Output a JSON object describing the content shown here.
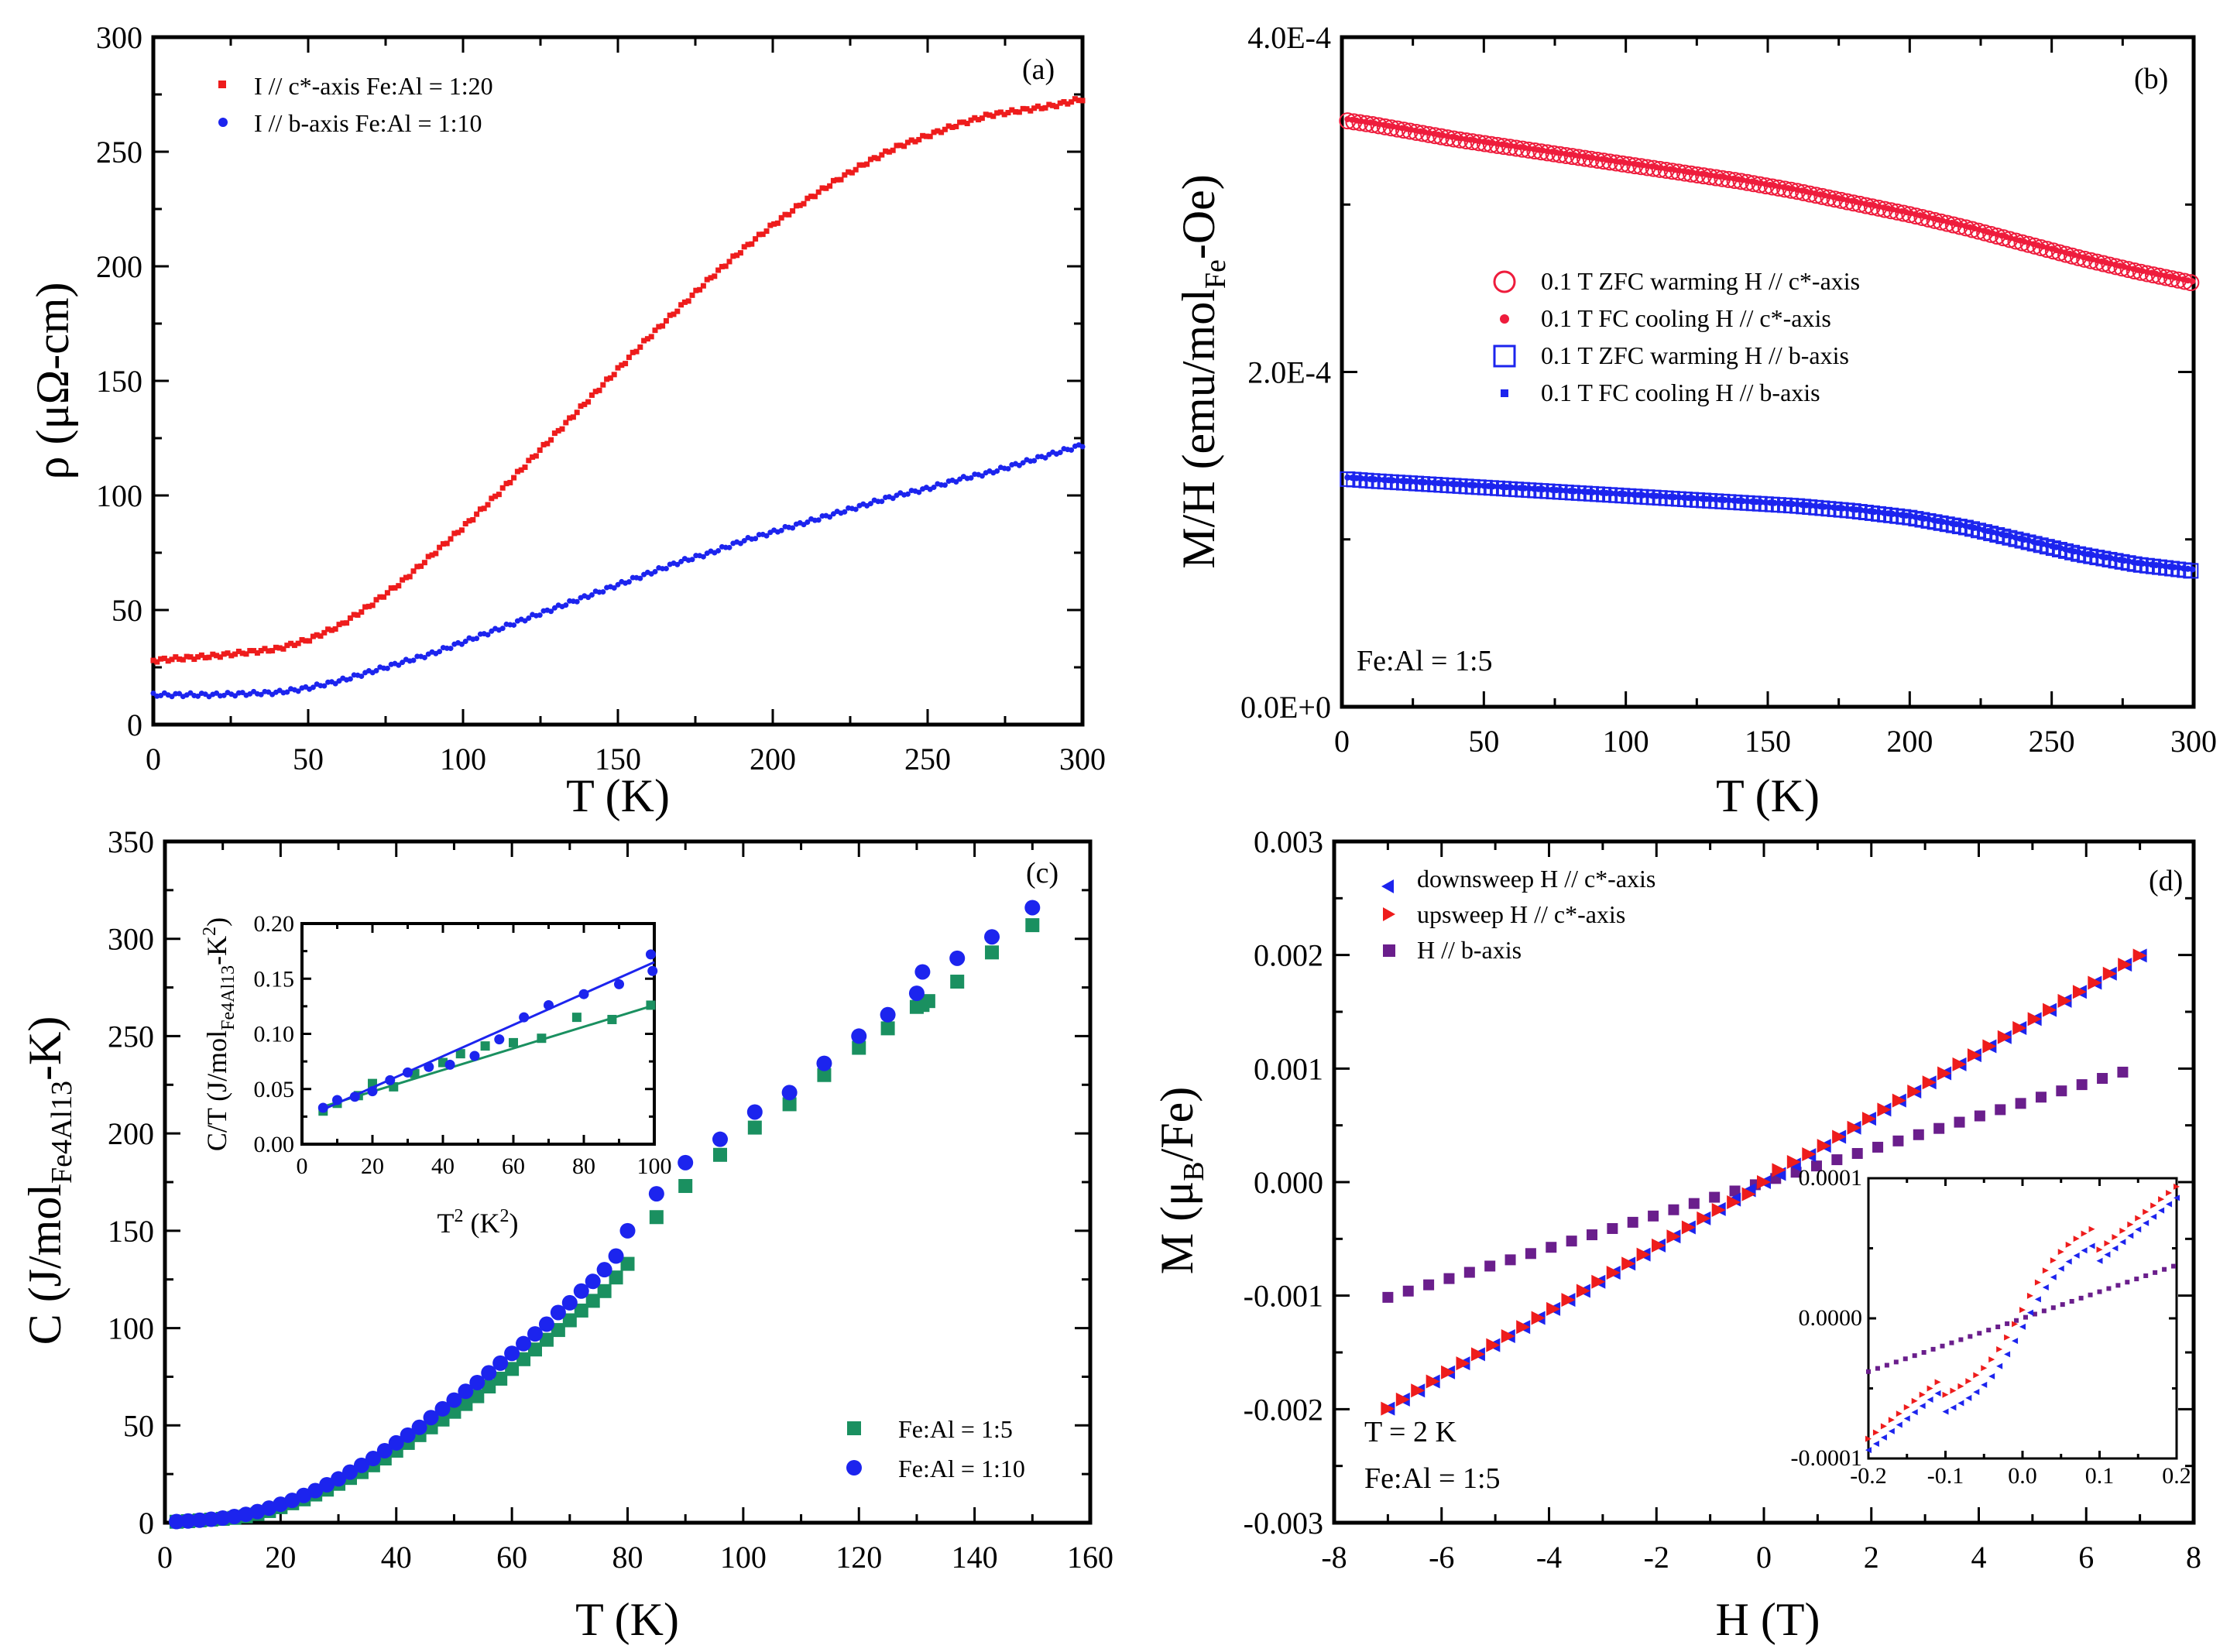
{
  "chart_data": [
    {
      "type": "line",
      "panel": "(a)",
      "xlabel": "T (K)",
      "ylabel": "ρ (μΩ-cm)",
      "xlim": [
        0,
        300
      ],
      "ylim": [
        0,
        300
      ],
      "xticks": [
        "0",
        "50",
        "100",
        "150",
        "200",
        "250",
        "300"
      ],
      "yticks": [
        "0",
        "50",
        "100",
        "150",
        "200",
        "250",
        "300"
      ],
      "legend_position": "top-left",
      "series": [
        {
          "name": "I // c*-axis Fe:Al = 1:20",
          "color": "#ee1c1c",
          "x": [
            0,
            20,
            40,
            50,
            60,
            70,
            80,
            90,
            100,
            110,
            120,
            130,
            140,
            150,
            160,
            170,
            180,
            190,
            200,
            210,
            220,
            230,
            240,
            250,
            260,
            270,
            280,
            290,
            300
          ],
          "y": [
            28,
            30,
            33,
            37,
            43,
            52,
            62,
            74,
            86,
            99,
            113,
            127,
            141,
            155,
            169,
            182,
            195,
            207,
            218,
            228,
            237,
            245,
            252,
            257,
            262,
            266,
            268,
            270,
            273
          ]
        },
        {
          "name": "I // b-axis   Fe:Al = 1:10",
          "color": "#1c24ee",
          "x": [
            0,
            20,
            40,
            50,
            60,
            70,
            80,
            90,
            100,
            110,
            120,
            130,
            140,
            150,
            160,
            170,
            180,
            190,
            200,
            210,
            220,
            230,
            240,
            250,
            260,
            270,
            280,
            290,
            300
          ],
          "y": [
            13,
            13,
            14,
            16,
            19,
            23,
            27,
            31,
            36,
            41,
            46,
            51,
            56,
            61,
            66,
            71,
            75,
            80,
            84,
            88,
            92,
            96,
            100,
            103,
            107,
            110,
            114,
            118,
            122
          ]
        }
      ]
    },
    {
      "type": "scatter",
      "panel": "(b)",
      "xlabel": "T (K)",
      "ylabel_main": "M/H (emu/mol",
      "ylabel_sub": "Fe",
      "ylabel_end": "-Oe)",
      "xlim": [
        0,
        300
      ],
      "ylim": [
        0,
        0.0004
      ],
      "xticks": [
        "0",
        "50",
        "100",
        "150",
        "200",
        "250",
        "300"
      ],
      "yticks": [
        "0.0E+0",
        "2.0E-4",
        "4.0E-4"
      ],
      "annotation": "Fe:Al = 1:5",
      "legend_position": "center",
      "series": [
        {
          "name": "0.1 T ZFC warming H // c*-axis",
          "color": "#ee1c3c",
          "marker": "open-circle",
          "x": [
            2,
            10,
            20,
            40,
            60,
            80,
            100,
            120,
            140,
            160,
            180,
            200,
            220,
            240,
            260,
            280,
            300
          ],
          "y": [
            0.00035,
            0.000348,
            0.000345,
            0.000339,
            0.000334,
            0.000329,
            0.000324,
            0.000319,
            0.000314,
            0.000308,
            0.000301,
            0.000294,
            0.000286,
            0.000277,
            0.000268,
            0.00026,
            0.000253
          ]
        },
        {
          "name": "0.1 T FC cooling H // c*-axis",
          "color": "#ee1c3c",
          "marker": "dot",
          "x": [
            2,
            10,
            20,
            40,
            60,
            80,
            100,
            120,
            140,
            160,
            180,
            200,
            220,
            240,
            260,
            280,
            300
          ],
          "y": [
            0.000351,
            0.000349,
            0.000346,
            0.00034,
            0.000335,
            0.00033,
            0.000325,
            0.00032,
            0.000315,
            0.000309,
            0.000302,
            0.000295,
            0.000287,
            0.000278,
            0.000269,
            0.000261,
            0.000254
          ]
        },
        {
          "name": "0.1 T ZFC warming H // b-axis",
          "color": "#1c24ee",
          "marker": "open-square",
          "x": [
            2,
            10,
            20,
            40,
            60,
            80,
            100,
            120,
            140,
            160,
            180,
            200,
            220,
            240,
            260,
            280,
            300
          ],
          "y": [
            0.000136,
            0.000135,
            0.000134,
            0.000132,
            0.00013,
            0.000128,
            0.000126,
            0.000124,
            0.000122,
            0.00012,
            0.000117,
            0.000113,
            0.000107,
            9.9e-05,
            9.1e-05,
            8.5e-05,
            8.1e-05
          ]
        },
        {
          "name": "0.1 T FC cooling H // b-axis",
          "color": "#1c24ee",
          "marker": "dot",
          "x": [
            2,
            10,
            20,
            40,
            60,
            80,
            100,
            120,
            140,
            160,
            180,
            200,
            220,
            240,
            260,
            280,
            300
          ],
          "y": [
            0.000137,
            0.000136,
            0.000135,
            0.000133,
            0.000131,
            0.000129,
            0.000127,
            0.000125,
            0.000123,
            0.000121,
            0.000118,
            0.000114,
            0.000108,
            0.0001,
            9.2e-05,
            8.6e-05,
            8.2e-05
          ]
        }
      ]
    },
    {
      "type": "scatter",
      "panel": "(c)",
      "xlabel": "T (K)",
      "ylabel_main": "C (J/mol",
      "ylabel_sub": "Fe4Al13",
      "ylabel_end": "-K)",
      "xlim": [
        0,
        160
      ],
      "ylim": [
        0,
        350
      ],
      "xticks": [
        "0",
        "20",
        "40",
        "60",
        "80",
        "100",
        "120",
        "140",
        "160"
      ],
      "yticks": [
        "0",
        "50",
        "100",
        "150",
        "200",
        "250",
        "300",
        "350"
      ],
      "legend_position": "bottom-right",
      "series": [
        {
          "name": "Fe:Al = 1:5",
          "color": "#1a9060",
          "marker": "square",
          "x": [
            2,
            4,
            6,
            8,
            10,
            12,
            14,
            16,
            18,
            20,
            22,
            24,
            26,
            28,
            30,
            32,
            34,
            36,
            38,
            40,
            42,
            44,
            46,
            48,
            50,
            52,
            54,
            56,
            58,
            60,
            62,
            64,
            66,
            68,
            70,
            72,
            74,
            76,
            78,
            80,
            85,
            90,
            96,
            102,
            108,
            114,
            120,
            125,
            130,
            131,
            132,
            137,
            143,
            150
          ],
          "y": [
            0.5,
            0.8,
            1.2,
            1.6,
            2,
            2.5,
            3.3,
            4.5,
            6,
            8,
            10,
            12,
            14.5,
            17,
            20,
            23,
            26,
            29.5,
            33,
            37,
            41,
            45,
            49,
            53,
            57,
            61,
            65,
            70,
            74,
            79,
            84,
            89,
            94,
            99,
            104,
            109,
            114,
            119,
            126,
            133,
            157,
            173,
            189,
            203,
            215,
            230,
            244,
            254,
            265,
            266,
            268,
            278,
            293,
            307
          ]
        },
        {
          "name": "Fe:Al = 1:10",
          "color": "#1c24ee",
          "marker": "circle",
          "x": [
            2,
            4,
            6,
            8,
            10,
            12,
            14,
            16,
            18,
            20,
            22,
            24,
            26,
            28,
            30,
            32,
            34,
            36,
            38,
            40,
            42,
            44,
            46,
            48,
            50,
            52,
            54,
            56,
            58,
            60,
            62,
            64,
            66,
            68,
            70,
            72,
            74,
            76,
            78,
            80,
            85,
            90,
            96,
            102,
            108,
            114,
            120,
            125,
            130,
            131,
            137,
            143,
            150
          ],
          "y": [
            0.6,
            0.9,
            1.3,
            1.8,
            2.4,
            3.2,
            4.3,
            5.7,
            7.5,
            9.5,
            11.5,
            14,
            16.5,
            19.5,
            22.5,
            26,
            29.5,
            33,
            37,
            41,
            45,
            49,
            54,
            58.5,
            63,
            67.5,
            72,
            77,
            82,
            87,
            92,
            97,
            102,
            108,
            113,
            119,
            124,
            130,
            137,
            150,
            169,
            185,
            197,
            211,
            221,
            236,
            250,
            261,
            272,
            283,
            290,
            301,
            316
          ]
        }
      ],
      "inset": {
        "type": "scatter",
        "xlabel_main": "T",
        "xlabel_sup": "2",
        "xlabel_end": " (K",
        "xlabel_sup2": "2",
        "xlabel_close": ")",
        "ylabel_main": "C/T (J/mol",
        "ylabel_sub": "Fe4Al13",
        "ylabel_mid": "-K",
        "ylabel_sup": "2",
        "ylabel_end": ")",
        "xlim": [
          0,
          100
        ],
        "ylim": [
          0,
          0.2
        ],
        "xticks": [
          "0",
          "20",
          "40",
          "60",
          "80",
          "100"
        ],
        "yticks": [
          "0.00",
          "0.05",
          "0.10",
          "0.15",
          "0.20"
        ],
        "series": [
          {
            "name": "Fe:Al = 1:5",
            "color": "#1a9060",
            "marker": "square",
            "x": [
              6,
              10,
              16,
              20,
              26,
              32,
              40,
              45,
              52,
              60,
              68,
              78,
              88,
              99
            ],
            "y": [
              0.03,
              0.037,
              0.044,
              0.055,
              0.052,
              0.064,
              0.074,
              0.082,
              0.089,
              0.092,
              0.096,
              0.115,
              0.113,
              0.126
            ],
            "fit": [
              [
                5,
                0.033
              ],
              [
                100,
                0.126
              ]
            ]
          },
          {
            "name": "Fe:Al = 1:10",
            "color": "#1c24ee",
            "marker": "circle",
            "x": [
              6,
              10,
              15,
              20,
              25,
              30,
              36,
              42,
              49,
              56,
              63,
              70,
              80,
              90,
              99,
              99.5
            ],
            "y": [
              0.033,
              0.04,
              0.043,
              0.048,
              0.058,
              0.065,
              0.07,
              0.072,
              0.08,
              0.095,
              0.115,
              0.126,
              0.136,
              0.145,
              0.172,
              0.157
            ],
            "fit": [
              [
                5,
                0.03
              ],
              [
                100,
                0.165
              ]
            ]
          }
        ]
      }
    },
    {
      "type": "scatter",
      "panel": "(d)",
      "xlabel": "H (T)",
      "ylabel_main": "M (μ",
      "ylabel_sub": "B",
      "ylabel_end": "/Fe)",
      "xlim": [
        -8,
        8
      ],
      "ylim": [
        -0.003,
        0.003
      ],
      "xticks": [
        "-8",
        "-6",
        "-4",
        "-2",
        "0",
        "2",
        "4",
        "6",
        "8"
      ],
      "yticks": [
        "-0.003",
        "-0.002",
        "-0.001",
        "0.000",
        "0.001",
        "0.002",
        "0.003"
      ],
      "annotation_lines": [
        "T = 2 K",
        "Fe:Al = 1:5"
      ],
      "legend_position": "top-left",
      "series": [
        {
          "name": "downsweep H // c*-axis",
          "color": "#1c24ee",
          "marker": "triangle-left",
          "slope": 0.000285
        },
        {
          "name": "upsweep H // c*-axis",
          "color": "#ee1c1c",
          "marker": "triangle-right",
          "slope": 0.000285
        },
        {
          "name": " H // b-axis",
          "color": "#6a1e8c",
          "marker": "square",
          "slope": 0.000145
        }
      ],
      "inset": {
        "type": "scatter",
        "xlim": [
          -0.2,
          0.2
        ],
        "ylim": [
          -0.0001,
          0.0001
        ],
        "xticks": [
          "-0.2",
          "-0.1",
          "0.0",
          "0.1",
          "0.2"
        ],
        "yticks": [
          "-0.0001",
          "0.0000",
          "0.0001"
        ]
      }
    }
  ]
}
